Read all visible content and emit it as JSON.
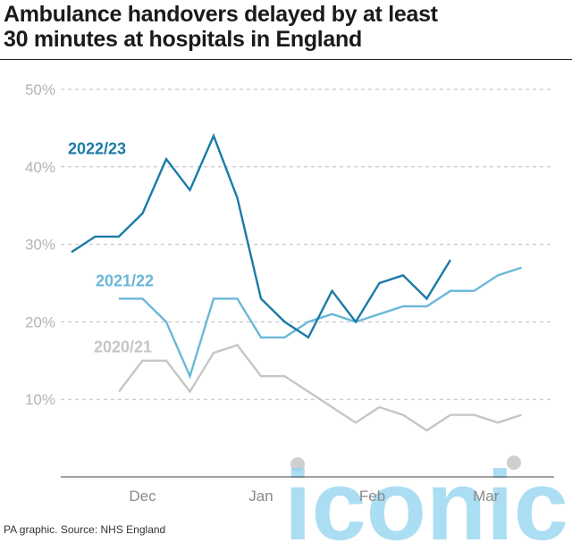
{
  "title_lines": [
    "Ambulance handovers delayed by at least",
    "30 minutes at hospitals in England"
  ],
  "source": "PA graphic. Source: NHS England",
  "watermark_text": "iconic",
  "chart_data": {
    "type": "line",
    "title": "Ambulance handovers delayed by at least 30 minutes at hospitals in England",
    "xlabel": "",
    "ylabel": "",
    "ylim": [
      0,
      50
    ],
    "yticks": [
      10,
      20,
      30,
      40,
      50
    ],
    "ytick_labels": [
      "10%",
      "20%",
      "30%",
      "40%",
      "50%"
    ],
    "x_tick_labels": [
      {
        "label": "Dec",
        "week": 3
      },
      {
        "label": "Jan",
        "week": 8
      },
      {
        "label": "Feb",
        "week": 12.7
      },
      {
        "label": "Mar",
        "week": 17.5
      }
    ],
    "grid": true,
    "series": [
      {
        "name": "2022/23",
        "color": "#1b7ba6",
        "start_week": 0,
        "values": [
          29,
          31,
          31,
          34,
          41,
          37,
          44,
          36,
          23,
          20,
          18,
          24,
          20,
          25,
          26,
          23,
          28
        ]
      },
      {
        "name": "2021/22",
        "color": "#6ab8d8",
        "start_week": 2,
        "values": [
          23,
          23,
          20,
          13,
          23,
          23,
          18,
          18,
          20,
          21,
          20,
          21,
          22,
          22,
          24,
          24,
          26,
          27
        ]
      },
      {
        "name": "2020/21",
        "color": "#c6c6c6",
        "start_week": 2,
        "values": [
          11,
          15,
          15,
          11,
          16,
          17,
          13,
          13,
          11,
          9,
          7,
          9,
          8,
          6,
          8,
          8,
          7,
          8
        ]
      }
    ]
  }
}
